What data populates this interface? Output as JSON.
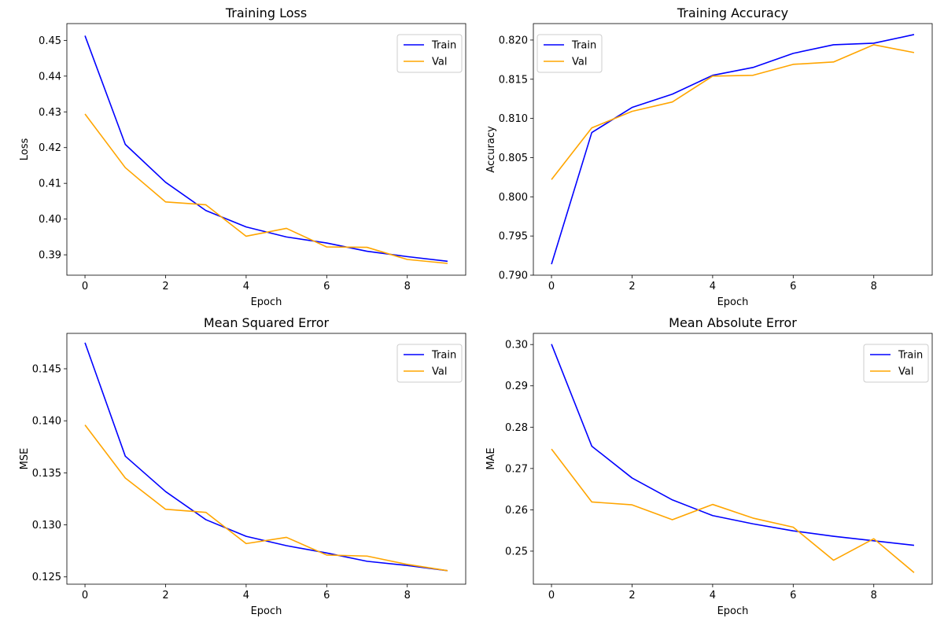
{
  "colors": {
    "train": "#0000ff",
    "val": "#ffa500"
  },
  "chart_data": [
    {
      "type": "line",
      "title": "Training Loss",
      "xlabel": "Epoch",
      "ylabel": "Loss",
      "x": [
        0,
        1,
        2,
        3,
        4,
        5,
        6,
        7,
        8,
        9
      ],
      "xticks": [
        0,
        2,
        4,
        6,
        8
      ],
      "ylim": [
        0.3843,
        0.4547
      ],
      "yticks": [
        "0.39",
        "0.40",
        "0.41",
        "0.42",
        "0.43",
        "0.44",
        "0.45"
      ],
      "legend": "top-right",
      "series": [
        {
          "name": "Train",
          "color": "train",
          "values": [
            0.4513,
            0.4209,
            0.4103,
            0.4024,
            0.3978,
            0.395,
            0.3933,
            0.391,
            0.3895,
            0.3882
          ]
        },
        {
          "name": "Val",
          "color": "val",
          "values": [
            0.4294,
            0.4144,
            0.4048,
            0.404,
            0.3952,
            0.3974,
            0.3922,
            0.3921,
            0.3887,
            0.3876
          ]
        }
      ]
    },
    {
      "type": "line",
      "title": "Training Accuracy",
      "xlabel": "Epoch",
      "ylabel": "Accuracy",
      "x": [
        0,
        1,
        2,
        3,
        4,
        5,
        6,
        7,
        8,
        9
      ],
      "xticks": [
        0,
        2,
        4,
        6,
        8
      ],
      "ylim": [
        0.79,
        0.8221
      ],
      "yticks": [
        "0.790",
        "0.795",
        "0.800",
        "0.805",
        "0.810",
        "0.815",
        "0.820"
      ],
      "legend": "top-left",
      "series": [
        {
          "name": "Train",
          "color": "train",
          "values": [
            0.7914,
            0.8082,
            0.8114,
            0.8131,
            0.8155,
            0.8165,
            0.8183,
            0.8194,
            0.8196,
            0.8207
          ]
        },
        {
          "name": "Val",
          "color": "val",
          "values": [
            0.8022,
            0.8088,
            0.8109,
            0.8121,
            0.8154,
            0.8155,
            0.8169,
            0.8172,
            0.8194,
            0.8184
          ]
        }
      ]
    },
    {
      "type": "line",
      "title": "Mean Squared Error",
      "xlabel": "Epoch",
      "ylabel": "MSE",
      "x": [
        0,
        1,
        2,
        3,
        4,
        5,
        6,
        7,
        8,
        9
      ],
      "xticks": [
        0,
        2,
        4,
        6,
        8
      ],
      "ylim": [
        0.1243,
        0.1484
      ],
      "yticks": [
        "0.125",
        "0.130",
        "0.135",
        "0.140",
        "0.145"
      ],
      "legend": "top-right",
      "series": [
        {
          "name": "Train",
          "color": "train",
          "values": [
            0.1475,
            0.1366,
            0.1332,
            0.1305,
            0.1289,
            0.128,
            0.1273,
            0.1265,
            0.1261,
            0.1256
          ]
        },
        {
          "name": "Val",
          "color": "val",
          "values": [
            0.1396,
            0.1345,
            0.1315,
            0.1312,
            0.1282,
            0.1288,
            0.1271,
            0.127,
            0.1262,
            0.1256
          ]
        }
      ]
    },
    {
      "type": "line",
      "title": "Mean Absolute Error",
      "xlabel": "Epoch",
      "ylabel": "MAE",
      "x": [
        0,
        1,
        2,
        3,
        4,
        5,
        6,
        7,
        8,
        9
      ],
      "xticks": [
        0,
        2,
        4,
        6,
        8
      ],
      "ylim": [
        0.242,
        0.3027
      ],
      "yticks": [
        "0.25",
        "0.26",
        "0.27",
        "0.28",
        "0.29",
        "0.30"
      ],
      "legend": "top-right",
      "series": [
        {
          "name": "Train",
          "color": "train",
          "values": [
            0.3001,
            0.2754,
            0.2677,
            0.2624,
            0.2586,
            0.2566,
            0.2549,
            0.2536,
            0.2525,
            0.2514
          ]
        },
        {
          "name": "Val",
          "color": "val",
          "values": [
            0.2747,
            0.2619,
            0.2612,
            0.2576,
            0.2613,
            0.258,
            0.2558,
            0.2478,
            0.253,
            0.2448
          ]
        }
      ]
    }
  ]
}
